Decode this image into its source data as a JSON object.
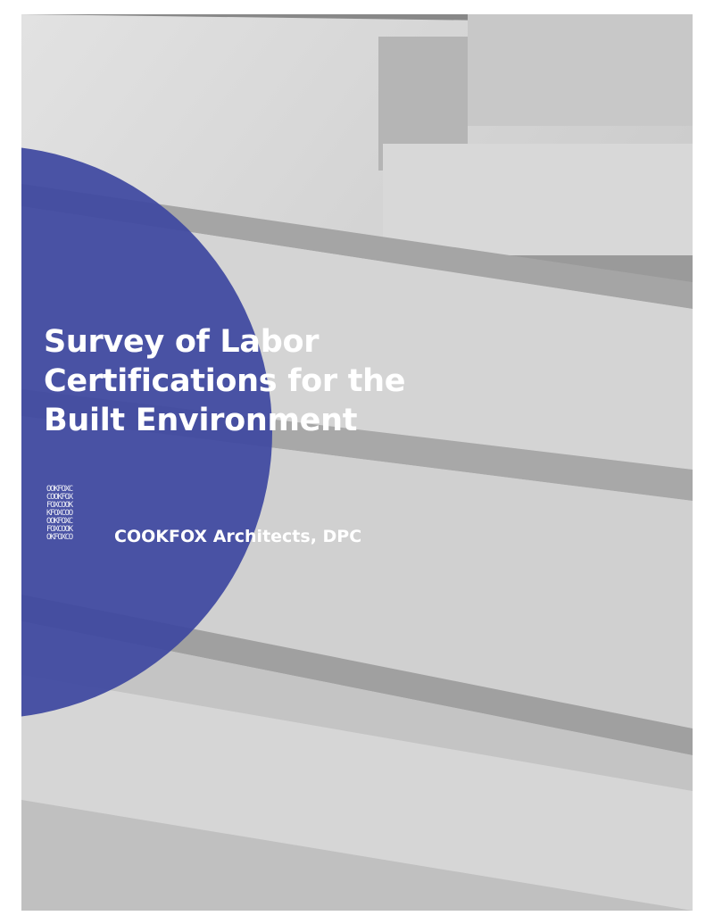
{
  "cover": {
    "title_lines": [
      "Survey of Labor",
      "Certifications for the",
      "Built Environment"
    ],
    "logo_lines": [
      "OOKFOXC",
      "COOKFOX",
      "FOXCOOK",
      "KFOXCOO",
      "OOKFOXC",
      "FOXCOOK",
      "OKFOXCO"
    ],
    "company": "COOKFOX Architects, DPC",
    "accent_color": "#3e48a0"
  }
}
